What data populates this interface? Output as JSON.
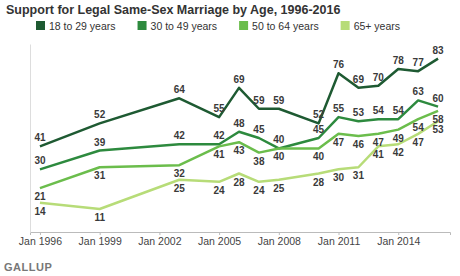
{
  "chart_data": {
    "type": "line",
    "title": "Support for Legal Same-Sex Marriage by Age, 1996-2016",
    "source": "GALLUP",
    "x": [
      1996,
      1999,
      2003,
      2005,
      2006,
      2007,
      2008,
      2010,
      2011,
      2012,
      2013,
      2014,
      2015,
      2016
    ],
    "xlim": [
      1995.5,
      2016.6
    ],
    "xticks": [
      {
        "value": 1996,
        "label": "Jan 1996"
      },
      {
        "value": 1999,
        "label": "Jan 1999"
      },
      {
        "value": 2002,
        "label": "Jan 2002"
      },
      {
        "value": 2005,
        "label": "Jan 2005"
      },
      {
        "value": 2008,
        "label": "Jan 2008"
      },
      {
        "value": 2011,
        "label": "Jan 2011"
      },
      {
        "value": 2014,
        "label": "Jan 2014"
      }
    ],
    "ylim": [
      0,
      90
    ],
    "tick_labels": "x",
    "grid": false,
    "legend": "top",
    "data_labels": true,
    "series": [
      {
        "name": "18 to 29 years",
        "color": "#1e5a32",
        "values": [
          41,
          52,
          64,
          55,
          69,
          59,
          59,
          52,
          76,
          69,
          70,
          78,
          77,
          83
        ]
      },
      {
        "name": "30 to 49 years",
        "color": "#2d8a3e",
        "values": [
          30,
          39,
          42,
          42,
          48,
          45,
          40,
          45,
          55,
          53,
          54,
          54,
          63,
          60
        ]
      },
      {
        "name": "50 to 64 years",
        "color": "#6bbd4c",
        "values": [
          21,
          31,
          32,
          41,
          43,
          38,
          40,
          40,
          47,
          46,
          47,
          49,
          54,
          58
        ]
      },
      {
        "name": "65+ years",
        "color": "#b7dc78",
        "values": [
          14,
          11,
          25,
          24,
          28,
          24,
          25,
          28,
          30,
          31,
          41,
          42,
          47,
          53
        ]
      }
    ]
  }
}
